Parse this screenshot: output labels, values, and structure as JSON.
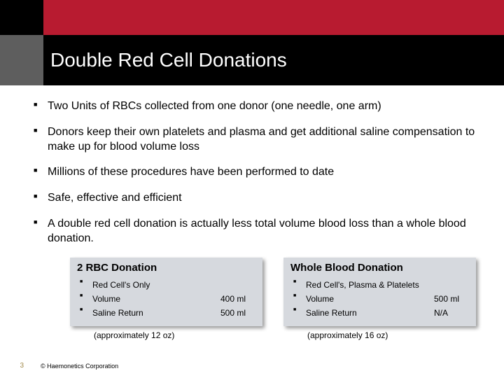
{
  "title": "Double Red Cell Donations",
  "colors": {
    "brand_red": "#b81b30",
    "header_black": "#000000",
    "header_gray": "#5e5e5e",
    "table_bg": "#d6d9de",
    "page_num": "#a28b4d"
  },
  "bullets": {
    "b1": "Two Units of RBCs collected from one donor (one needle, one arm)",
    "b2": "Donors keep their own platelets and plasma and get additional saline compensation to make up for blood volume loss",
    "b3": "Millions of these procedures have been performed to date",
    "b4": "Safe, effective and efficient",
    "b5": "A double red cell donation is actually less total volume blood loss than a whole blood donation."
  },
  "table_left": {
    "title": "2 RBC Donation",
    "row1": "Red Cell's Only",
    "row2_label": "Volume",
    "row2_value": "400 ml",
    "row3_label": "Saline Return",
    "row3_value": "500 ml",
    "approx": "(approximately 12 oz)"
  },
  "table_right": {
    "title": "Whole Blood Donation",
    "row1": "Red Cell's, Plasma & Platelets",
    "row2_label": "Volume",
    "row2_value": "500 ml",
    "row3_label": "Saline Return",
    "row3_value": "N/A",
    "approx": "(approximately 16 oz)"
  },
  "footer": {
    "page": "3",
    "copyright": "© Haemonetics Corporation"
  }
}
